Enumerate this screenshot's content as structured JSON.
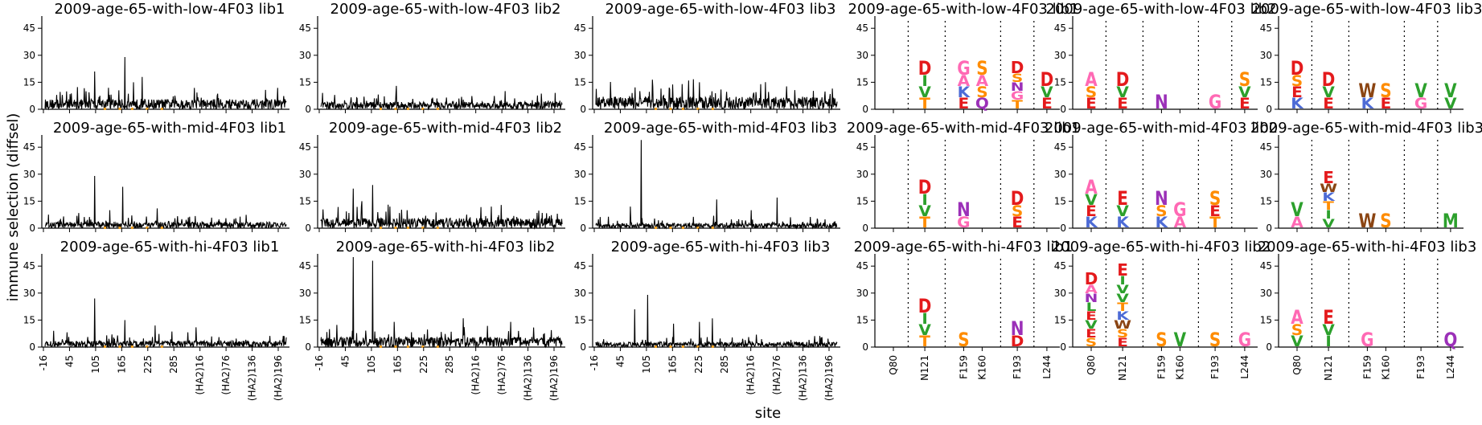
{
  "figure": {
    "ylabel": "immune selection (diffsel)",
    "xlabel": "site"
  },
  "colors": {
    "line": "#000000",
    "tickmark": "#f0a020",
    "D": "#e41a1c",
    "E": "#e41a1c",
    "N": "#9b30b8",
    "Q": "#9b30b8",
    "S": "#ff8c00",
    "T": "#ff8c00",
    "G": "#ff69b4",
    "A": "#ff69b4",
    "V": "#2ca02c",
    "I": "#2ca02c",
    "L": "#2ca02c",
    "K": "#4d6bd6",
    "R": "#4d6bd6",
    "H": "#4d6bd6",
    "W": "#8b4513",
    "F": "#8b4513",
    "Y": "#8b4513",
    "P": "#555555",
    "C": "#555555",
    "M": "#2ca02c"
  },
  "chart_data": {
    "line_xticks": [
      "-16",
      "45",
      "105",
      "165",
      "225",
      "285",
      "(HA2)16",
      "(HA2)76",
      "(HA2)136",
      "(HA2)196"
    ],
    "logo_xticks": [
      "Q80",
      "N121",
      "F159",
      "K160",
      "F193",
      "L244"
    ],
    "yticks": [
      "0",
      "15",
      "30",
      "45"
    ],
    "ylim": [
      0,
      50
    ],
    "line_plots": [
      {
        "title": "2009-age-65-with-low-4F03 lib1",
        "type": "line",
        "baseline": 4,
        "peaks": [
          [
            115,
            21
          ],
          [
            150,
            6
          ],
          [
            185,
            29
          ],
          [
            205,
            15
          ],
          [
            225,
            18
          ],
          [
            40,
            8
          ],
          [
            95,
            10
          ]
        ]
      },
      {
        "title": "2009-age-65-with-low-4F03 lib2",
        "type": "line",
        "baseline": 3,
        "peaks": [
          [
            175,
            13
          ],
          [
            100,
            7
          ],
          [
            320,
            6
          ]
        ]
      },
      {
        "title": "2009-age-65-with-low-4F03 lib3",
        "type": "line",
        "baseline": 5,
        "peaks": [
          [
            200,
            14
          ],
          [
            215,
            16
          ],
          [
            240,
            15
          ],
          [
            170,
            12
          ],
          [
            290,
            11
          ]
        ]
      },
      {
        "title": "2009-age-65-with-mid-4F03 lib1",
        "type": "line",
        "baseline": 2.5,
        "peaks": [
          [
            115,
            29
          ],
          [
            150,
            10
          ],
          [
            180,
            23
          ],
          [
            260,
            11
          ]
        ]
      },
      {
        "title": "2009-age-65-with-mid-4F03 lib2",
        "type": "line",
        "baseline": 4,
        "peaks": [
          [
            75,
            22
          ],
          [
            120,
            24
          ],
          [
            160,
            12
          ],
          [
            95,
            15
          ],
          [
            200,
            10
          ]
        ]
      },
      {
        "title": "2009-age-65-with-mid-4F03 lib3",
        "type": "line",
        "baseline": 2,
        "peaks": [
          [
            105,
            49
          ],
          [
            80,
            12
          ],
          [
            280,
            16
          ],
          [
            420,
            17
          ],
          [
            360,
            10
          ]
        ]
      },
      {
        "title": "2009-age-65-with-hi-4F03 lib1",
        "type": "line",
        "baseline": 2.5,
        "peaks": [
          [
            115,
            27
          ],
          [
            185,
            15
          ],
          [
            20,
            9
          ],
          [
            255,
            12
          ],
          [
            350,
            11
          ]
        ]
      },
      {
        "title": "2009-age-65-with-hi-4F03 lib2",
        "type": "line",
        "baseline": 4,
        "peaks": [
          [
            75,
            50
          ],
          [
            120,
            48
          ],
          [
            20,
            10
          ],
          [
            170,
            14
          ],
          [
            330,
            16
          ],
          [
            440,
            14
          ]
        ]
      },
      {
        "title": "2009-age-65-with-hi-4F03 lib3",
        "type": "line",
        "baseline": 2,
        "peaks": [
          [
            90,
            21
          ],
          [
            120,
            29
          ],
          [
            180,
            13
          ],
          [
            270,
            16
          ],
          [
            240,
            14
          ]
        ]
      }
    ],
    "logo_plots": [
      {
        "title": "2009-age-65-with-low-4F03 lib1",
        "stacks": [
          [],
          [
            "T",
            "V",
            "I",
            "D"
          ],
          [
            "E",
            "K",
            "A",
            "G"
          ],
          [
            "Q",
            "S",
            "A",
            "S"
          ],
          [
            "T",
            "G",
            "N",
            "S",
            "D"
          ],
          [
            "E",
            "V",
            "D"
          ]
        ]
      },
      {
        "title": "2009-age-65-with-low-4F03 lib2",
        "stacks": [
          [
            "E",
            "S",
            "A"
          ],
          [
            "E",
            "V",
            "D"
          ],
          [
            "N"
          ],
          [],
          [
            "G"
          ],
          [
            "E",
            "V",
            "S"
          ]
        ]
      },
      {
        "title": "2009-age-65-with-low-4F03 lib3",
        "stacks": [
          [
            "K",
            "E",
            "S",
            "D"
          ],
          [
            "E",
            "V",
            "D"
          ],
          [
            "K",
            "W"
          ],
          [
            "E",
            "S"
          ],
          [
            "G",
            "V"
          ],
          [
            "V",
            "V"
          ]
        ]
      },
      {
        "title": "2009-age-65-with-mid-4F03 lib1",
        "stacks": [
          [],
          [
            "T",
            "V",
            "I",
            "D"
          ],
          [
            "G",
            "N"
          ],
          [],
          [
            "E",
            "S",
            "D"
          ],
          []
        ]
      },
      {
        "title": "2009-age-65-with-mid-4F03 lib2",
        "stacks": [
          [
            "K",
            "E",
            "V",
            "A"
          ],
          [
            "K",
            "V",
            "E"
          ],
          [
            "K",
            "S",
            "N"
          ],
          [
            "A",
            "G"
          ],
          [
            "T",
            "E",
            "S"
          ],
          []
        ]
      },
      {
        "title": "2009-age-65-with-mid-4F03 lib3",
        "stacks": [
          [
            "A",
            "V"
          ],
          [
            "V",
            "I",
            "T",
            "K",
            "W",
            "E"
          ],
          [
            "W"
          ],
          [
            "S"
          ],
          [],
          [
            "M"
          ]
        ]
      },
      {
        "title": "2009-age-65-with-hi-4F03 lib1",
        "stacks": [
          [],
          [
            "T",
            "V",
            "I",
            "D"
          ],
          [
            "S"
          ],
          [],
          [
            "D",
            "N"
          ],
          []
        ]
      },
      {
        "title": "2009-age-65-with-hi-4F03 lib2",
        "stacks": [
          [
            "S",
            "E",
            "V",
            "E",
            "L",
            "N",
            "A",
            "D"
          ],
          [
            "E",
            "S",
            "W",
            "K",
            "T",
            "V",
            "V",
            "I",
            "E"
          ],
          [
            "S"
          ],
          [
            "V"
          ],
          [
            "S"
          ],
          [
            "G"
          ]
        ]
      },
      {
        "title": "2009-age-65-with-hi-4F03 lib3",
        "stacks": [
          [
            "V",
            "S",
            "A"
          ],
          [
            "I",
            "V",
            "E"
          ],
          [
            "G"
          ],
          [],
          [],
          [
            "Q"
          ]
        ]
      }
    ]
  }
}
